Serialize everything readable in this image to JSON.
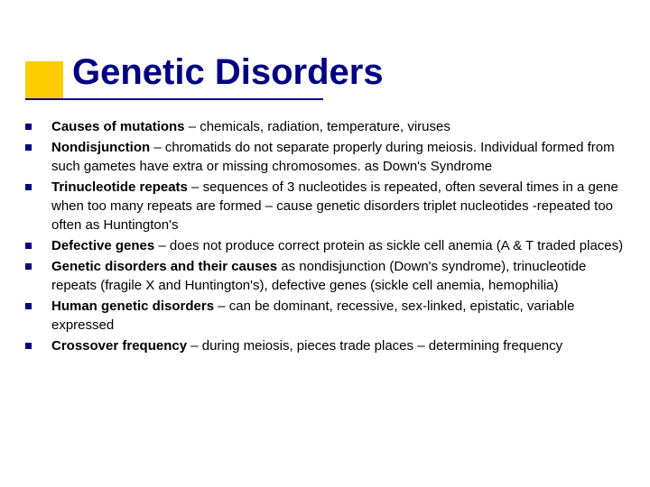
{
  "title": "Genetic Disorders",
  "accent_color": "#ffcc00",
  "title_color": "#000080",
  "bullet_color": "#000080",
  "text_color": "#000000",
  "background": "#ffffff",
  "title_fontsize": 40,
  "body_fontsize": 15,
  "items": [
    {
      "bold": "Causes of mutations",
      "rest": " – chemicals, radiation, temperature, viruses"
    },
    {
      "bold": "Nondisjunction",
      "rest": " – chromatids do not separate properly during meiosis. Individual formed from such gametes have extra or missing chromosomes. as Down's Syndrome"
    },
    {
      "bold": "Trinucleotide repeats",
      "rest": " – sequences of 3 nucleotides is repeated, often several times in a gene when too many repeats are formed – cause genetic disorders triplet nucleotides -repeated too often as Huntington's"
    },
    {
      "bold": "Defective genes",
      "rest": " – does not produce correct protein as sickle cell anemia (A & T traded places)"
    },
    {
      "bold": "Genetic disorders and their causes",
      "rest": " as  nondisjunction (Down's syndrome), trinucleotide repeats (fragile X and Huntington's), defective genes (sickle cell anemia, hemophilia)"
    },
    {
      "bold": "Human genetic disorders",
      "rest": " –  can be dominant, recessive, sex-linked, epistatic, variable expressed"
    },
    {
      "bold": "Crossover frequency",
      "rest": " – during meiosis,  pieces trade places – determining frequency"
    }
  ]
}
